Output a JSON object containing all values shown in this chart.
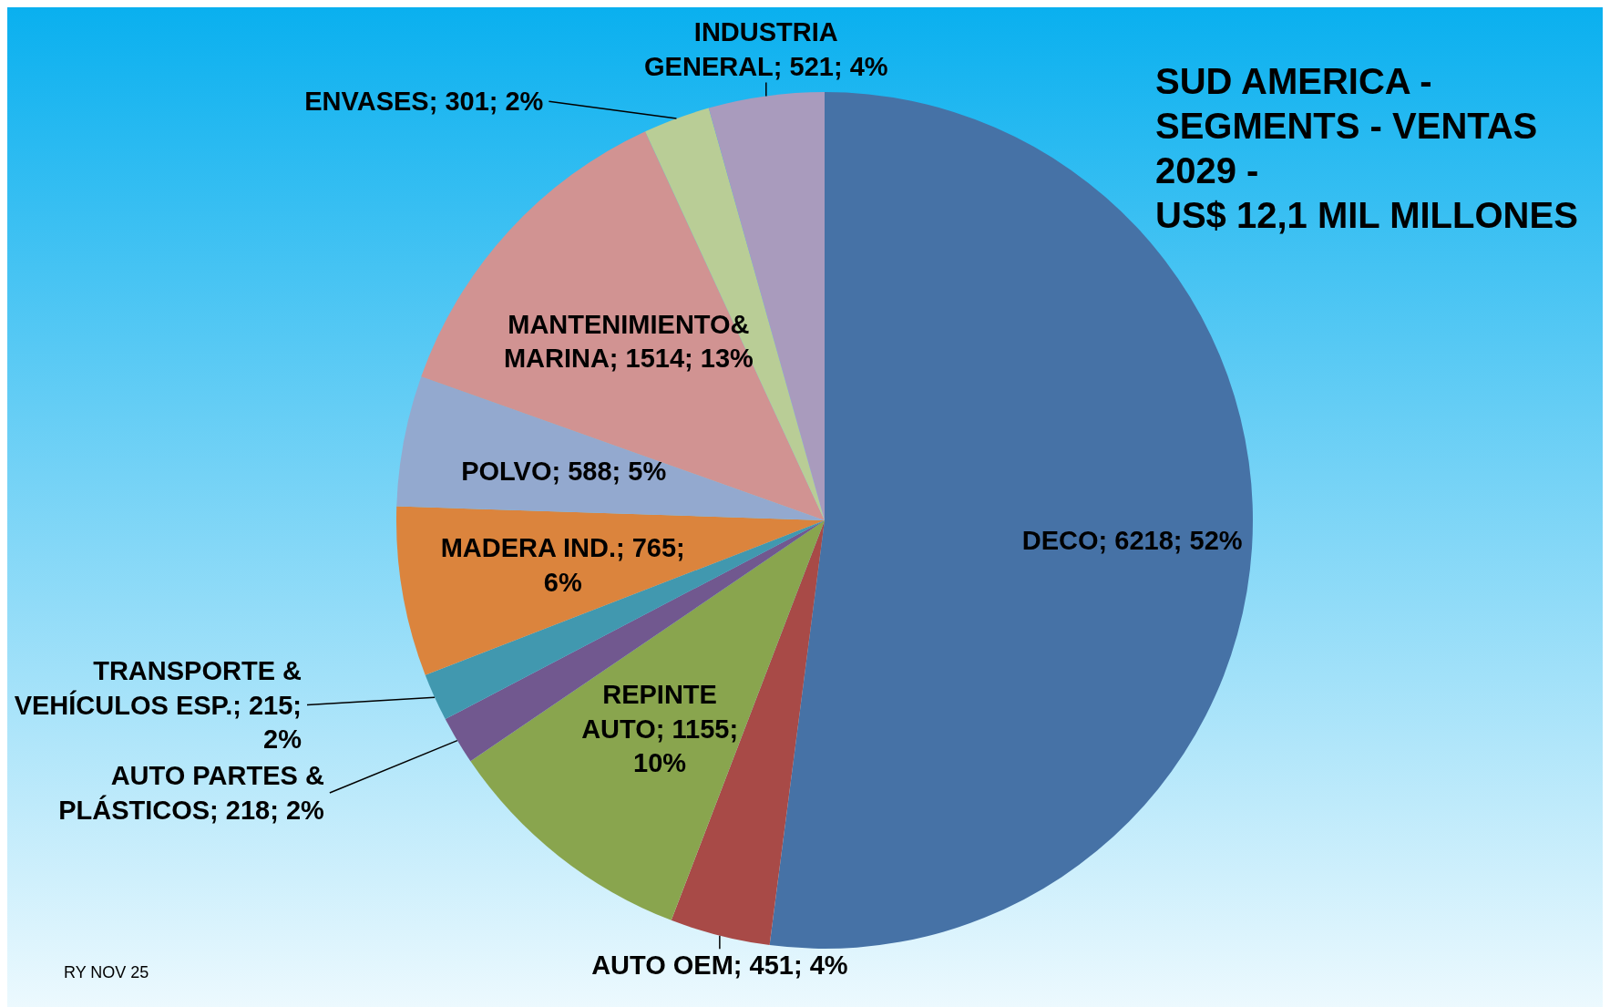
{
  "chart_data": {
    "type": "pie",
    "title": "SUD AMERICA -\nSEGMENTS - VENTAS\n2029 -\nUS$ 12,1 MIL MILLONES",
    "categories": [
      "DECO",
      "AUTO OEM",
      "REPINTE AUTO",
      "AUTO PARTES & PLÁSTICOS",
      "TRANSPORTE & VEHÍCULOS ESP.",
      "MADERA IND.",
      "POLVO",
      "MANTENIMIENTO& MARINA",
      "ENVASES",
      "INDUSTRIA GENERAL"
    ],
    "values": [
      6218,
      451,
      1155,
      218,
      215,
      765,
      588,
      1514,
      301,
      521
    ],
    "value_labels": [
      "6218; 52%",
      "451; 4%",
      "1155; 10%",
      "218; 2%",
      "215; 2%",
      "765; 6%",
      "588; 5%",
      "1514; 13%",
      "301; 2%",
      "521; 4%"
    ],
    "colors": [
      "#4672a6",
      "#a84a47",
      "#89a54e",
      "#71588f",
      "#4198af",
      "#db843d",
      "#93a9cf",
      "#d19392",
      "#b9cd96",
      "#a99bbd"
    ],
    "annotations": [
      "RY NOV 25"
    ]
  }
}
